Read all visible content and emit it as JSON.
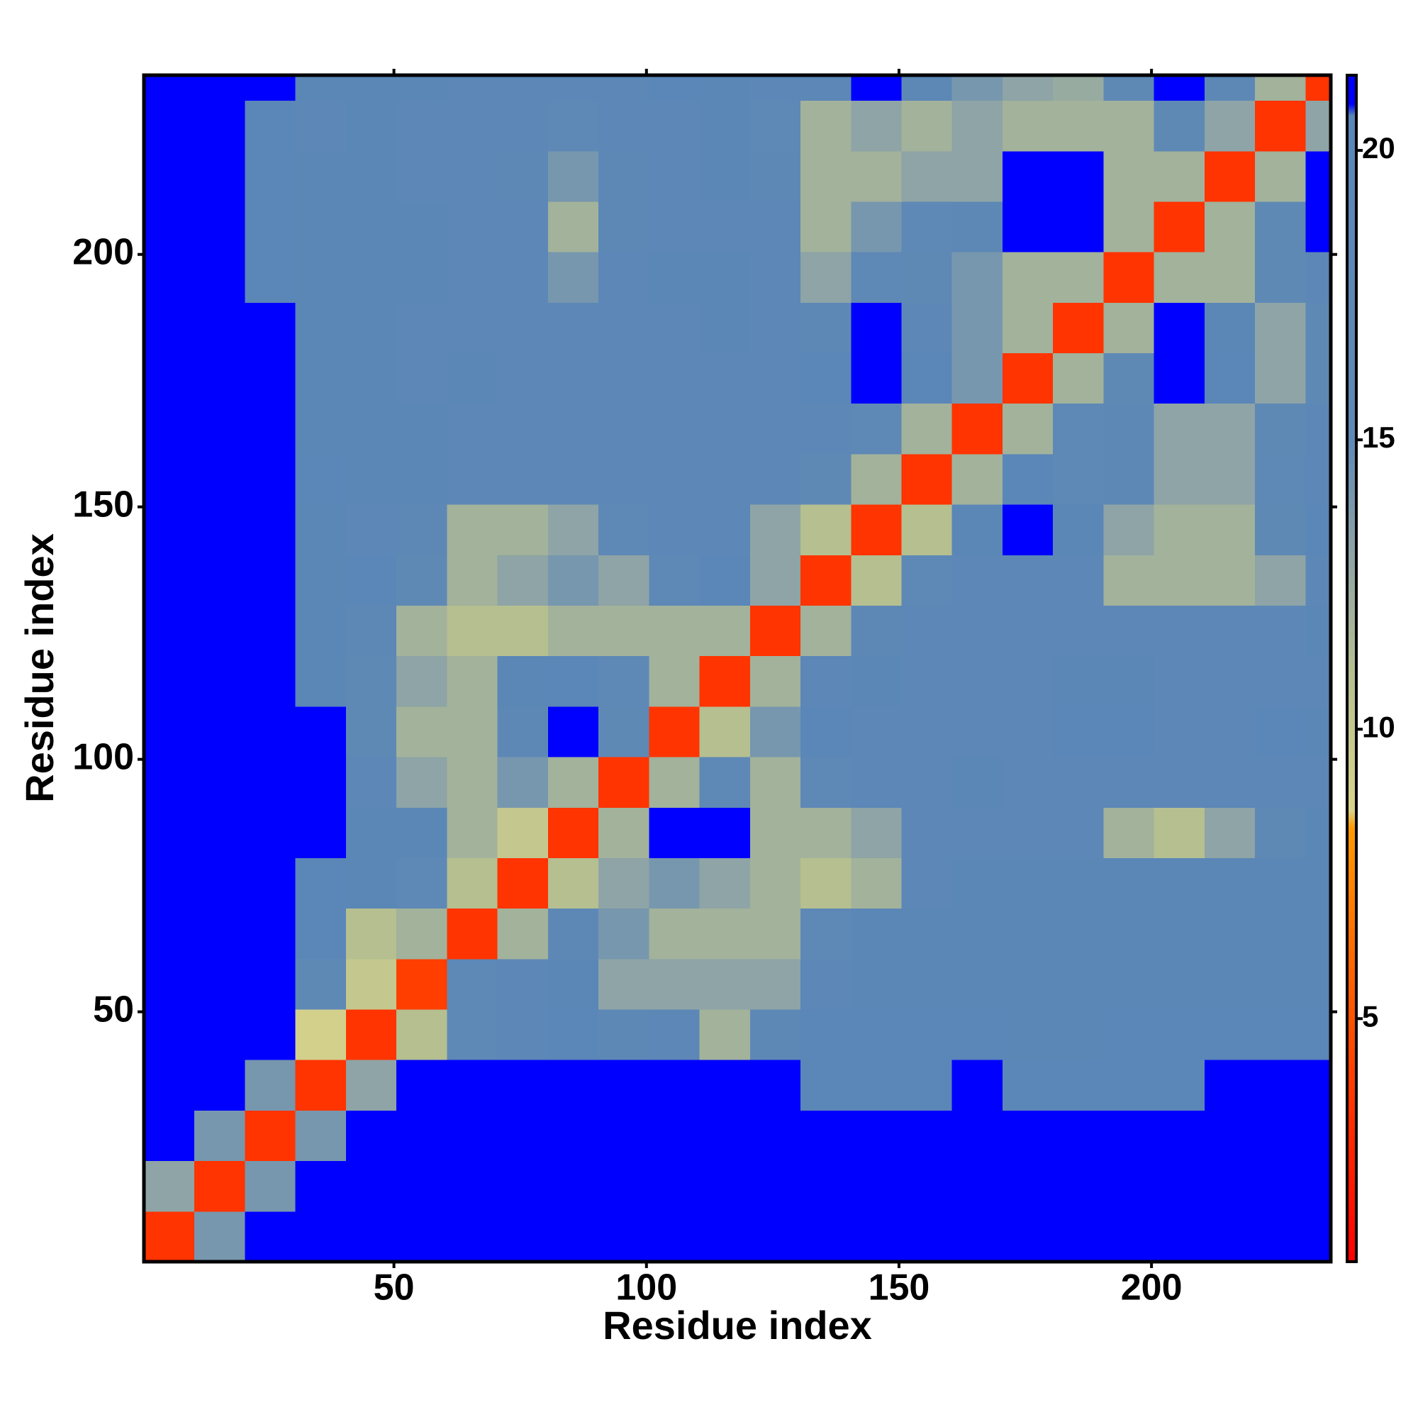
{
  "chart_data": {
    "type": "heatmap",
    "x_label": "Residue index",
    "y_label": "Residue index",
    "xlim": [
      0.5,
      235.5
    ],
    "ylim": [
      0.5,
      235.5
    ],
    "xticks": [
      50,
      100,
      150,
      200
    ],
    "yticks": [
      50,
      100,
      150,
      200
    ],
    "xbins": [
      0.5,
      10.5,
      20.5,
      30.5,
      40.5,
      50.5,
      60.5,
      70.5,
      80.5,
      90.5,
      100.5,
      110.5,
      120.5,
      130.5,
      140.5,
      150.5,
      160.5,
      170.5,
      180.5,
      190.5,
      200.5,
      210.5,
      220.5,
      230.5,
      235.5
    ],
    "ybins": [
      0.5,
      10.5,
      20.5,
      30.5,
      40.5,
      50.5,
      60.5,
      70.5,
      80.5,
      90.5,
      100.5,
      110.5,
      120.5,
      130.5,
      140.5,
      150.5,
      160.5,
      170.5,
      180.5,
      190.5,
      200.5,
      210.5,
      220.5,
      230.5,
      235.5
    ],
    "z": [
      [
        3.5,
        14,
        22,
        22,
        22,
        22,
        22,
        22,
        22,
        22,
        22,
        22,
        22,
        22,
        22,
        22,
        22,
        22,
        22,
        22,
        22,
        22,
        22,
        22
      ],
      [
        13,
        3.5,
        14,
        22,
        22,
        22,
        22,
        22,
        22,
        22,
        22,
        22,
        22,
        22,
        22,
        22,
        22,
        22,
        22,
        22,
        22,
        22,
        22,
        22
      ],
      [
        22,
        14,
        3.5,
        14,
        22,
        22,
        22,
        22,
        22,
        22,
        22,
        22,
        22,
        22,
        22,
        22,
        22,
        22,
        22,
        22,
        22,
        22,
        22,
        22
      ],
      [
        22,
        22,
        14,
        3.5,
        13,
        21,
        21.5,
        21.5,
        21.5,
        21.5,
        21.5,
        21.5,
        21.5,
        20,
        20,
        20,
        21,
        20.5,
        20.5,
        20.5,
        20.5,
        21,
        21.5,
        21.5
      ],
      [
        22,
        22,
        22,
        9,
        3.5,
        11,
        16,
        18,
        20,
        17,
        18,
        12,
        17,
        20,
        20,
        20,
        20,
        19,
        19,
        20,
        20,
        20,
        20,
        20
      ],
      [
        22,
        22,
        22,
        15,
        10,
        4,
        16,
        18,
        19,
        13,
        13,
        13,
        13,
        18,
        19,
        19,
        19,
        19,
        19,
        19,
        19,
        19,
        19,
        19
      ],
      [
        22,
        22,
        22,
        20,
        11,
        12,
        3.5,
        12,
        17,
        14,
        12,
        12,
        12,
        16,
        19,
        19,
        19,
        19,
        19,
        19,
        19,
        19,
        19,
        19
      ],
      [
        22,
        22,
        22,
        20.5,
        19,
        16,
        11,
        3.5,
        11,
        13,
        14,
        13,
        12,
        11,
        12,
        18,
        19,
        19,
        19,
        19,
        19,
        19,
        19,
        19
      ],
      [
        22,
        22,
        22,
        21,
        19.5,
        19,
        12,
        10,
        3.5,
        12,
        21,
        21,
        12,
        12,
        13,
        18,
        18,
        18,
        18,
        12,
        11,
        13,
        15,
        19
      ],
      [
        22,
        22,
        22,
        21,
        18,
        13,
        12,
        14,
        12,
        3.5,
        12,
        16,
        12,
        16,
        18,
        18,
        19,
        18,
        18,
        18,
        18,
        18,
        18,
        18
      ],
      [
        22,
        22,
        22,
        21,
        15,
        12,
        12,
        17,
        21,
        15,
        3.5,
        11,
        14,
        20,
        18,
        18,
        18,
        18,
        20,
        20,
        18,
        18,
        20,
        19
      ],
      [
        22,
        22,
        22,
        19,
        15,
        13,
        12,
        19,
        20,
        16,
        12,
        3.5,
        12,
        18,
        19,
        18,
        18,
        18,
        19,
        19,
        18,
        18,
        18,
        18
      ],
      [
        22,
        22,
        22,
        19,
        17,
        12,
        11,
        11,
        12,
        12,
        12,
        12,
        3.5,
        12,
        17,
        18,
        18,
        18,
        18,
        18,
        18,
        18,
        18,
        19
      ],
      [
        22,
        22,
        22,
        19,
        20,
        15,
        12,
        13,
        14,
        13,
        16,
        20,
        13,
        3.5,
        11,
        16,
        18,
        18,
        18,
        12,
        12,
        12,
        13,
        18
      ],
      [
        22,
        22,
        22,
        19,
        18,
        17,
        12,
        12,
        13,
        16,
        18,
        18,
        13,
        11,
        3.5,
        11,
        19,
        20.8,
        19,
        13,
        12,
        12,
        15,
        20
      ],
      [
        22,
        22,
        22,
        20,
        19,
        19,
        18,
        18,
        18,
        18,
        18,
        18,
        18,
        15,
        12,
        3.5,
        12,
        20,
        16,
        17,
        13,
        13,
        16,
        18
      ],
      [
        22,
        22,
        21,
        19,
        19,
        19,
        18,
        18,
        18,
        18,
        18,
        18,
        18,
        18,
        16,
        12,
        3.5,
        12,
        16,
        17,
        13,
        13,
        15,
        18
      ],
      [
        22,
        22,
        21,
        19,
        19,
        18,
        19,
        18,
        18,
        18.5,
        18,
        18,
        18,
        20,
        21,
        20,
        14,
        3.5,
        12,
        15,
        21.5,
        20,
        13,
        15
      ],
      [
        22,
        22,
        21,
        19,
        19,
        18,
        18,
        18,
        18,
        18,
        18,
        19,
        18,
        17,
        21,
        18,
        14,
        12,
        3.5,
        12,
        21.5,
        19,
        13,
        15
      ],
      [
        22,
        21,
        20,
        19,
        19,
        19,
        18,
        18,
        14,
        18,
        19.5,
        19.5,
        18,
        13,
        16,
        15,
        14,
        12,
        12,
        3.5,
        12,
        12,
        15,
        18
      ],
      [
        22,
        21,
        20,
        19,
        19.5,
        19,
        18,
        18,
        12,
        17,
        18,
        18,
        18,
        12,
        14,
        16,
        17,
        21,
        21,
        12,
        3.5,
        12,
        15,
        21
      ],
      [
        22,
        21,
        20,
        19,
        19,
        18,
        18,
        17,
        14,
        17,
        18,
        19.5,
        17,
        12,
        12,
        13,
        13,
        21,
        21,
        12,
        12,
        3.5,
        12,
        21
      ],
      [
        22,
        21,
        20,
        18.5,
        19.5,
        18.5,
        18,
        18,
        16,
        18,
        18,
        19.5,
        16,
        12,
        13,
        12,
        13,
        12,
        12,
        12,
        15,
        13,
        3.5,
        13
      ],
      [
        22,
        22,
        22,
        19.5,
        19.5,
        19,
        18,
        18,
        18,
        18.5,
        20,
        19,
        18,
        18,
        21,
        17,
        14,
        13,
        12.5,
        15,
        21,
        17,
        12,
        3.5
      ]
    ],
    "zlim": [
      0.8,
      21.3
    ],
    "zticks": [
      5,
      10,
      15,
      20
    ],
    "color_stops": [
      {
        "value": 0.8,
        "color": "#ff0000"
      },
      {
        "value": 3,
        "color": "#ff2a00"
      },
      {
        "value": 6,
        "color": "#ff6600"
      },
      {
        "value": 8.3,
        "color": "#ff9900"
      },
      {
        "value": 8.6,
        "color": "#d8d38a"
      },
      {
        "value": 11,
        "color": "#b5bf90"
      },
      {
        "value": 13,
        "color": "#8ea4a6"
      },
      {
        "value": 15,
        "color": "#5f89b5"
      },
      {
        "value": 20.6,
        "color": "#5a86b8"
      },
      {
        "value": 20.8,
        "color": "#0000ff"
      },
      {
        "value": 21.3,
        "color": "#0000ff"
      }
    ]
  }
}
